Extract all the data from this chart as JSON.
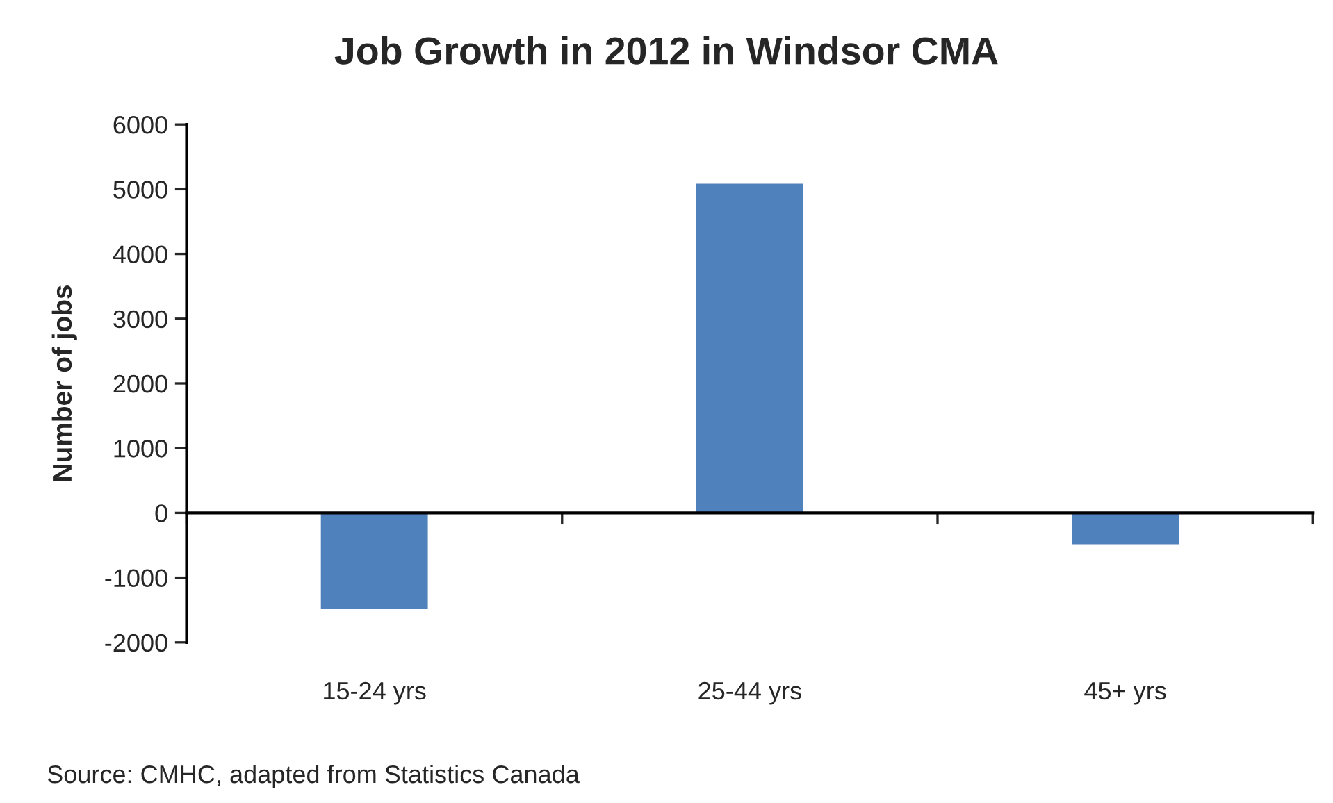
{
  "chart_data": {
    "type": "bar",
    "title": "Job Growth in 2012 in Windsor CMA",
    "ylabel": "Number of jobs",
    "categories": [
      "15-24 yrs",
      "25-44 yrs",
      "45+ yrs"
    ],
    "values": [
      -1500,
      5100,
      -500
    ],
    "color": "#4f81bd",
    "ylim": [
      -2000,
      6000
    ],
    "yticks": [
      -2000,
      -1000,
      0,
      1000,
      2000,
      3000,
      4000,
      5000,
      6000
    ],
    "legend": false,
    "annotations": [
      "Source: CMHC, adapted from Statistics Canada"
    ]
  }
}
